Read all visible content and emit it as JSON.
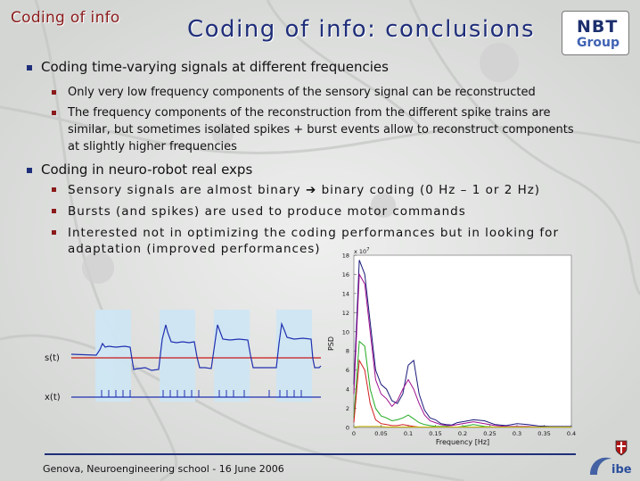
{
  "section_title": "Coding of info",
  "slide_title": "Coding of info: conclusions",
  "logo": {
    "line1": "NBT",
    "line2": "Group"
  },
  "bullets": [
    {
      "text": "Coding time-varying signals at different frequencies",
      "sub": [
        "Only very low frequency components of the sensory signal can be reconstructed",
        "The frequency components of the reconstruction from the different spike trains are",
        "similar, but sometimes isolated spikes + burst events allow to reconstruct components",
        "at slightly higher frequencies"
      ]
    },
    {
      "text": "Coding in neuro-robot real exps",
      "sub": [
        "Sensory signals are almost binary",
        "binary coding (0 Hz – 1 or 2 Hz)",
        "Bursts (and spikes) are used to produce motor commands",
        "Interested not in optimizing the coding performances but in looking for",
        "adaptation (improved performances)"
      ]
    }
  ],
  "signal_labels": {
    "s": "s(t)",
    "x": "x(t)"
  },
  "chart_data": {
    "type": "line",
    "title": "",
    "xlabel": "Frequency [Hz]",
    "ylabel": "PSD",
    "y_exponent": "x 10",
    "y_exponent_power": "7",
    "xlim": [
      0,
      0.4
    ],
    "ylim": [
      0,
      18
    ],
    "x_ticks": [
      "0",
      "0.05",
      "0.1",
      "0.15",
      "0.2",
      "0.25",
      "0.3",
      "0.35",
      "0.4"
    ],
    "y_ticks": [
      "0",
      "2",
      "4",
      "6",
      "8",
      "10",
      "12",
      "14",
      "16",
      "18"
    ],
    "x": [
      0,
      0.01,
      0.02,
      0.03,
      0.04,
      0.05,
      0.06,
      0.07,
      0.08,
      0.09,
      0.1,
      0.11,
      0.12,
      0.13,
      0.14,
      0.15,
      0.16,
      0.17,
      0.18,
      0.19,
      0.2,
      0.22,
      0.24,
      0.26,
      0.28,
      0.3,
      0.32,
      0.34,
      0.36,
      0.38,
      0.4
    ],
    "series": [
      {
        "color": "#1a1a7a",
        "values": [
          4.5,
          17.5,
          16,
          11,
          6,
          4.5,
          4,
          2.8,
          2.5,
          3.5,
          6.5,
          7,
          3.5,
          1.8,
          1,
          0.8,
          0.4,
          0.3,
          0.25,
          0.5,
          0.6,
          0.8,
          0.7,
          0.3,
          0.2,
          0.4,
          0.3,
          0.15,
          0.1,
          0.1,
          0.1
        ]
      },
      {
        "color": "#a01090",
        "values": [
          3.5,
          16,
          15,
          10,
          5,
          3.5,
          3,
          2.2,
          2.8,
          4,
          5,
          4,
          2.5,
          1.3,
          0.7,
          0.5,
          0.3,
          0.2,
          0.2,
          0.3,
          0.4,
          0.6,
          0.4,
          0.2,
          0.1,
          0.1,
          0.1,
          0.05,
          0.05,
          0.05,
          0.05
        ]
      },
      {
        "color": "#22aa22",
        "values": [
          1,
          9,
          8.5,
          4,
          2,
          1.2,
          1,
          0.7,
          0.8,
          1,
          1.3,
          0.9,
          0.5,
          0.3,
          0.2,
          0.1,
          0.1,
          0.1,
          0.05,
          0.05,
          0.1,
          0.3,
          0.1,
          0.05,
          0.05,
          0.05,
          0.05,
          0.05,
          0.05,
          0.05,
          0.05
        ]
      },
      {
        "color": "#d02020",
        "values": [
          0.5,
          7,
          6,
          2.5,
          0.8,
          0.4,
          0.3,
          0.2,
          0.2,
          0.3,
          0.2,
          0.1,
          0.05,
          0.05,
          0.05,
          0.05,
          0.05,
          0.05,
          0.05,
          0.05,
          0.05,
          0.05,
          0.05,
          0.05,
          0.05,
          0.05,
          0.05,
          0.05,
          0.05,
          0.05,
          0.05
        ]
      },
      {
        "color": "#c8b400",
        "values": [
          0.05,
          0.1,
          0.1,
          0.1,
          0.1,
          0.1,
          0.05,
          0.05,
          0.05,
          0.05,
          0.05,
          0.05,
          0.05,
          0.05,
          0.05,
          0.05,
          0.05,
          0.05,
          0.05,
          0.05,
          0.05,
          0.05,
          0.05,
          0.05,
          0.05,
          0.05,
          0.05,
          0.05,
          0.05,
          0.05,
          0.05
        ]
      }
    ]
  },
  "footer": "Genova, Neuroengineering school - 16 June 2006",
  "footer_logo": "ibe"
}
